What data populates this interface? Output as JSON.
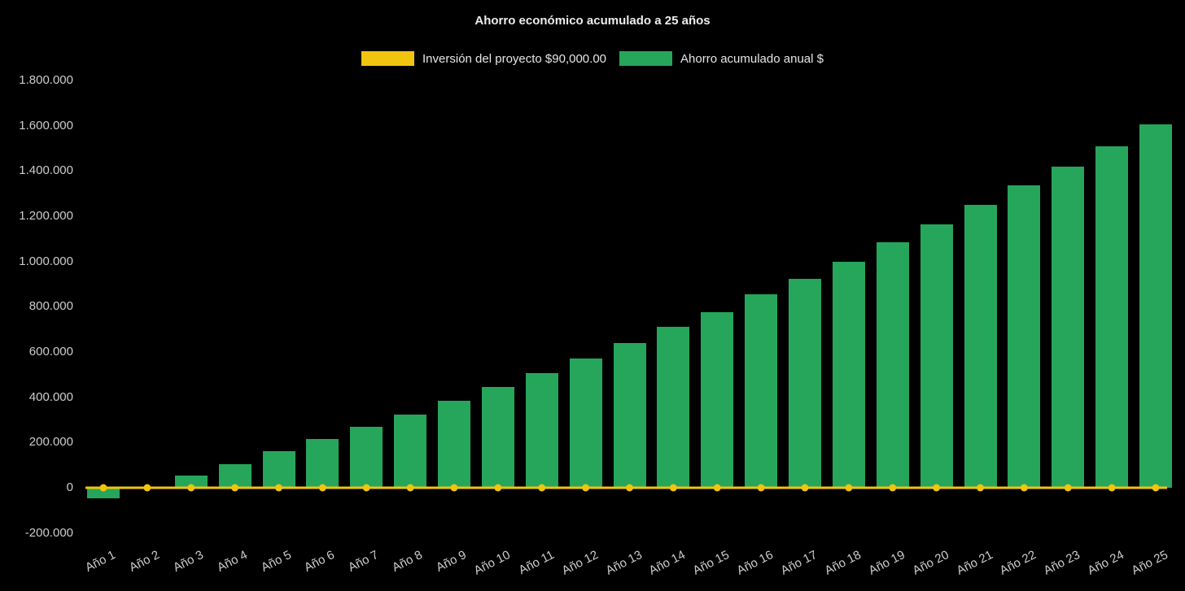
{
  "background_color": "#000000",
  "chart_data": {
    "type": "bar",
    "title": "Ahorro económico acumulado a 25 años",
    "title_color": "#ececec",
    "axis_label_color": "#cccccc",
    "grid": false,
    "legend_position": "top",
    "x_tick_rotation_deg": -27,
    "legend": [
      {
        "label": "Inversión del proyecto $90,000.00",
        "color": "#f1c40f",
        "type": "line"
      },
      {
        "label": "Ahorro acumulado anual $",
        "color": "#26a65b",
        "type": "bar"
      }
    ],
    "categories": [
      "Año 1",
      "Año 2",
      "Año 3",
      "Año 4",
      "Año 5",
      "Año 6",
      "Año 7",
      "Año 8",
      "Año 9",
      "Año 10",
      "Año 11",
      "Año 12",
      "Año 13",
      "Año 14",
      "Año 15",
      "Año 16",
      "Año 17",
      "Año 18",
      "Año 19",
      "Año 20",
      "Año 21",
      "Año 22",
      "Año 23",
      "Año 24",
      "Año 25"
    ],
    "series": [
      {
        "name": "Ahorro acumulado anual $",
        "type": "bar",
        "color": "#26a65b",
        "values": [
          -45000,
          5000,
          55000,
          105000,
          160000,
          215000,
          270000,
          325000,
          385000,
          445000,
          505000,
          570000,
          640000,
          710000,
          775000,
          855000,
          925000,
          1000000,
          1085000,
          1165000,
          1250000,
          1335000,
          1420000,
          1510000,
          1605000
        ]
      },
      {
        "name": "Inversión del proyecto $90,000.00",
        "type": "line",
        "color": "#f1c40f",
        "marker": "circle",
        "values": [
          0,
          0,
          0,
          0,
          0,
          0,
          0,
          0,
          0,
          0,
          0,
          0,
          0,
          0,
          0,
          0,
          0,
          0,
          0,
          0,
          0,
          0,
          0,
          0,
          0
        ]
      }
    ],
    "y_axis": {
      "min": -200000,
      "max": 1800000,
      "ticks": [
        {
          "label": "1.800.000",
          "value": 1800000
        },
        {
          "label": "1.600.000",
          "value": 1600000
        },
        {
          "label": "1.400.000",
          "value": 1400000
        },
        {
          "label": "1.200.000",
          "value": 1200000
        },
        {
          "label": "1.000.000",
          "value": 1000000
        },
        {
          "label": "800.000",
          "value": 800000
        },
        {
          "label": "600.000",
          "value": 600000
        },
        {
          "label": "400.000",
          "value": 400000
        },
        {
          "label": "200.000",
          "value": 200000
        },
        {
          "label": "0",
          "value": 0
        },
        {
          "label": "-200.000",
          "value": -200000
        }
      ]
    }
  }
}
